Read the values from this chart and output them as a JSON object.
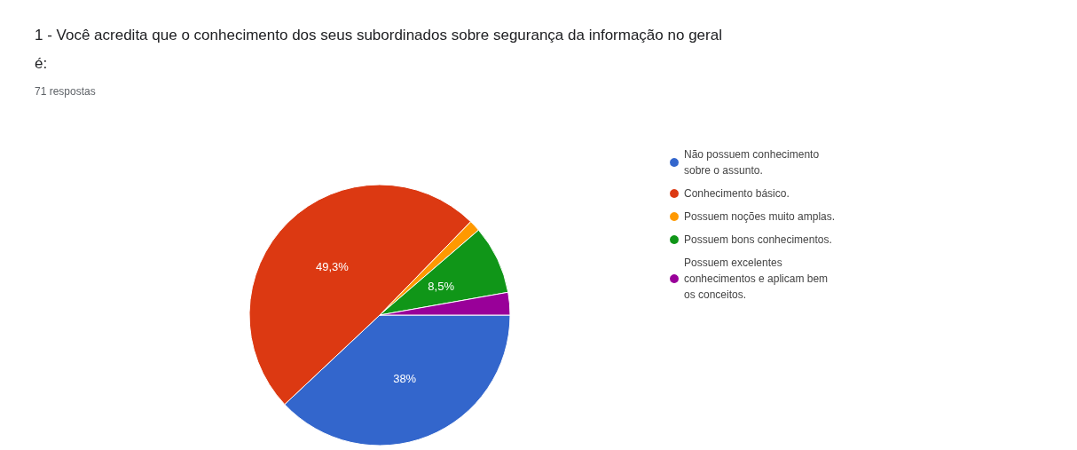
{
  "chart_data": {
    "type": "pie",
    "title": "1 - Você acredita que o conhecimento dos seus subordinados sobre segurança da informação no geral é:",
    "subtitle": "71 respostas",
    "categories": [
      "Não possuem conhecimento sobre o assunto.",
      "Conhecimento básico.",
      "Possuem noções muito amplas.",
      "Possuem bons conhecimentos.",
      "Possuem excelentes conhecimentos e aplicam bem os conceitos."
    ],
    "values": [
      38,
      49.3,
      1.4,
      8.5,
      2.8
    ],
    "colors": [
      "#3366cc",
      "#dc3912",
      "#ff9900",
      "#109618",
      "#990099"
    ],
    "value_labels": [
      "38%",
      "49,3%",
      null,
      "8,5%",
      null
    ],
    "legend": "right"
  }
}
